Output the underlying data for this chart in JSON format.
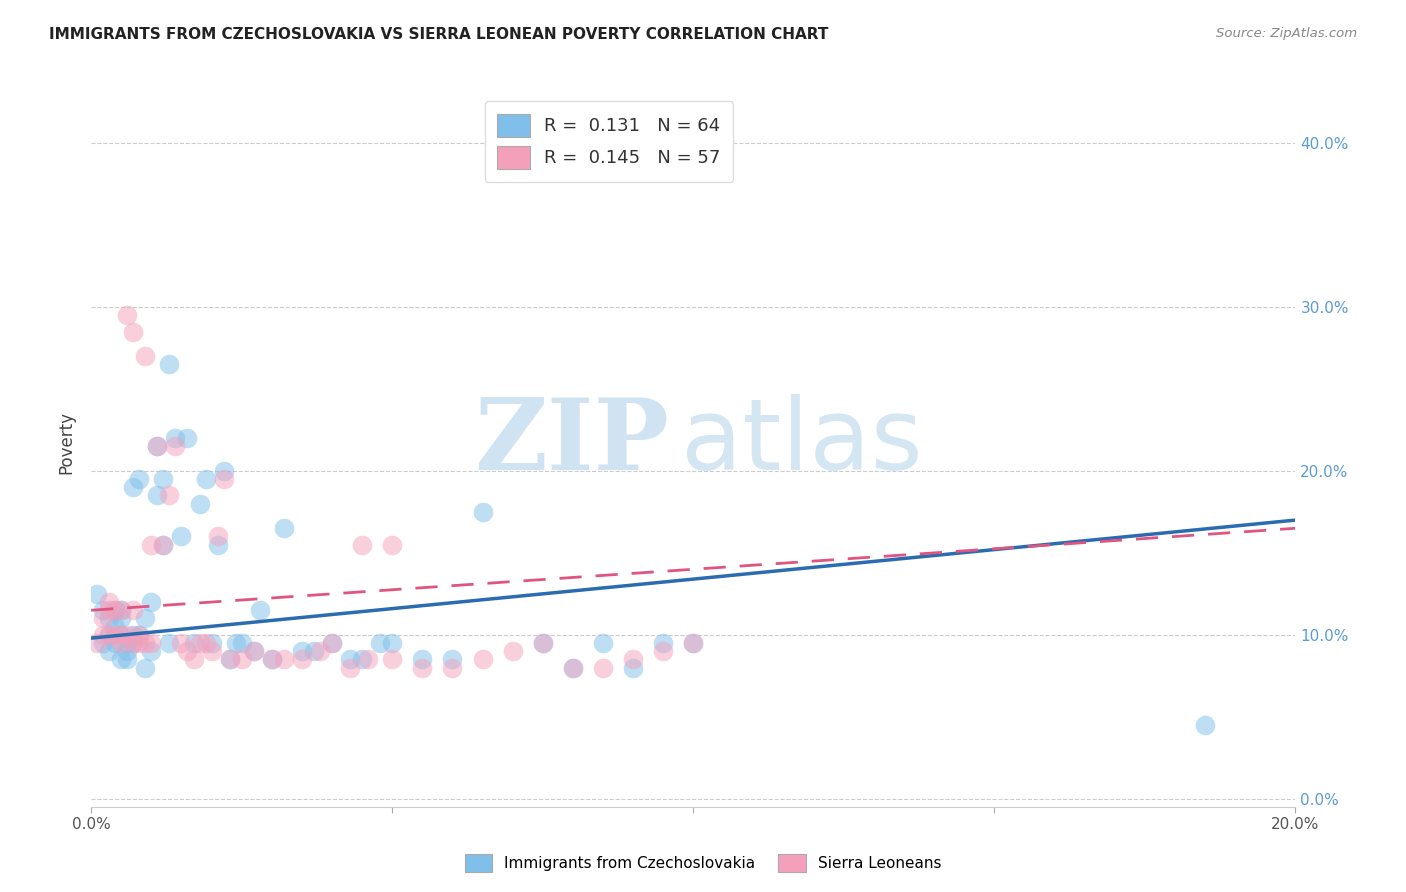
{
  "title": "IMMIGRANTS FROM CZECHOSLOVAKIA VS SIERRA LEONEAN POVERTY CORRELATION CHART",
  "source": "Source: ZipAtlas.com",
  "ylabel": "Poverty",
  "xlabel": "",
  "xlim": [
    0.0,
    0.2
  ],
  "ylim": [
    -0.005,
    0.44
  ],
  "x_ticks": [
    0.0,
    0.05,
    0.1,
    0.15,
    0.2
  ],
  "x_tick_labels": [
    "0.0%",
    "",
    "",
    "",
    "20.0%"
  ],
  "y_ticks": [
    0.0,
    0.1,
    0.2,
    0.3,
    0.4
  ],
  "y_tick_labels": [
    "0.0%",
    "10.0%",
    "20.0%",
    "30.0%",
    "40.0%"
  ],
  "legend_r1": "R =  0.131   N = 64",
  "legend_r2": "R =  0.145   N = 57",
  "blue_color": "#7fbfea",
  "pink_color": "#f4a0bb",
  "blue_line_color": "#2b6bb0",
  "pink_line_color": "#e05580",
  "watermark_zip": "ZIP",
  "watermark_atlas": "atlas",
  "watermark_color": "#d8edf8",
  "blue_trend_x0": 0.0,
  "blue_trend_y0": 0.098,
  "blue_trend_x1": 0.2,
  "blue_trend_y1": 0.17,
  "pink_trend_x0": 0.0,
  "pink_trend_y0": 0.115,
  "pink_trend_x1": 0.2,
  "pink_trend_y1": 0.165,
  "blue_scatter_x": [
    0.001,
    0.002,
    0.002,
    0.003,
    0.003,
    0.003,
    0.004,
    0.004,
    0.004,
    0.005,
    0.005,
    0.005,
    0.005,
    0.006,
    0.006,
    0.006,
    0.007,
    0.007,
    0.007,
    0.008,
    0.008,
    0.009,
    0.009,
    0.01,
    0.01,
    0.011,
    0.011,
    0.012,
    0.012,
    0.013,
    0.013,
    0.014,
    0.015,
    0.016,
    0.017,
    0.018,
    0.019,
    0.02,
    0.021,
    0.022,
    0.023,
    0.024,
    0.025,
    0.027,
    0.028,
    0.03,
    0.032,
    0.035,
    0.037,
    0.04,
    0.043,
    0.045,
    0.048,
    0.05,
    0.055,
    0.06,
    0.065,
    0.075,
    0.08,
    0.085,
    0.09,
    0.095,
    0.1,
    0.185
  ],
  "blue_scatter_y": [
    0.125,
    0.095,
    0.115,
    0.1,
    0.11,
    0.09,
    0.105,
    0.095,
    0.115,
    0.1,
    0.11,
    0.085,
    0.115,
    0.085,
    0.09,
    0.095,
    0.095,
    0.1,
    0.19,
    0.1,
    0.195,
    0.08,
    0.11,
    0.12,
    0.09,
    0.215,
    0.185,
    0.155,
    0.195,
    0.095,
    0.265,
    0.22,
    0.16,
    0.22,
    0.095,
    0.18,
    0.195,
    0.095,
    0.155,
    0.2,
    0.085,
    0.095,
    0.095,
    0.09,
    0.115,
    0.085,
    0.165,
    0.09,
    0.09,
    0.095,
    0.085,
    0.085,
    0.095,
    0.095,
    0.085,
    0.085,
    0.175,
    0.095,
    0.08,
    0.095,
    0.08,
    0.095,
    0.095,
    0.045
  ],
  "pink_scatter_x": [
    0.001,
    0.002,
    0.002,
    0.003,
    0.003,
    0.003,
    0.004,
    0.004,
    0.005,
    0.005,
    0.005,
    0.006,
    0.006,
    0.007,
    0.007,
    0.007,
    0.008,
    0.008,
    0.009,
    0.009,
    0.01,
    0.01,
    0.011,
    0.012,
    0.013,
    0.014,
    0.015,
    0.016,
    0.017,
    0.018,
    0.019,
    0.02,
    0.021,
    0.022,
    0.023,
    0.025,
    0.027,
    0.03,
    0.032,
    0.035,
    0.038,
    0.04,
    0.043,
    0.046,
    0.05,
    0.055,
    0.06,
    0.065,
    0.07,
    0.075,
    0.08,
    0.085,
    0.09,
    0.095,
    0.1,
    0.045,
    0.05
  ],
  "pink_scatter_y": [
    0.095,
    0.11,
    0.1,
    0.115,
    0.1,
    0.12,
    0.1,
    0.115,
    0.095,
    0.115,
    0.1,
    0.1,
    0.295,
    0.095,
    0.115,
    0.285,
    0.095,
    0.1,
    0.095,
    0.27,
    0.095,
    0.155,
    0.215,
    0.155,
    0.185,
    0.215,
    0.095,
    0.09,
    0.085,
    0.095,
    0.095,
    0.09,
    0.16,
    0.195,
    0.085,
    0.085,
    0.09,
    0.085,
    0.085,
    0.085,
    0.09,
    0.095,
    0.08,
    0.085,
    0.085,
    0.08,
    0.08,
    0.085,
    0.09,
    0.095,
    0.08,
    0.08,
    0.085,
    0.09,
    0.095,
    0.155,
    0.155
  ]
}
